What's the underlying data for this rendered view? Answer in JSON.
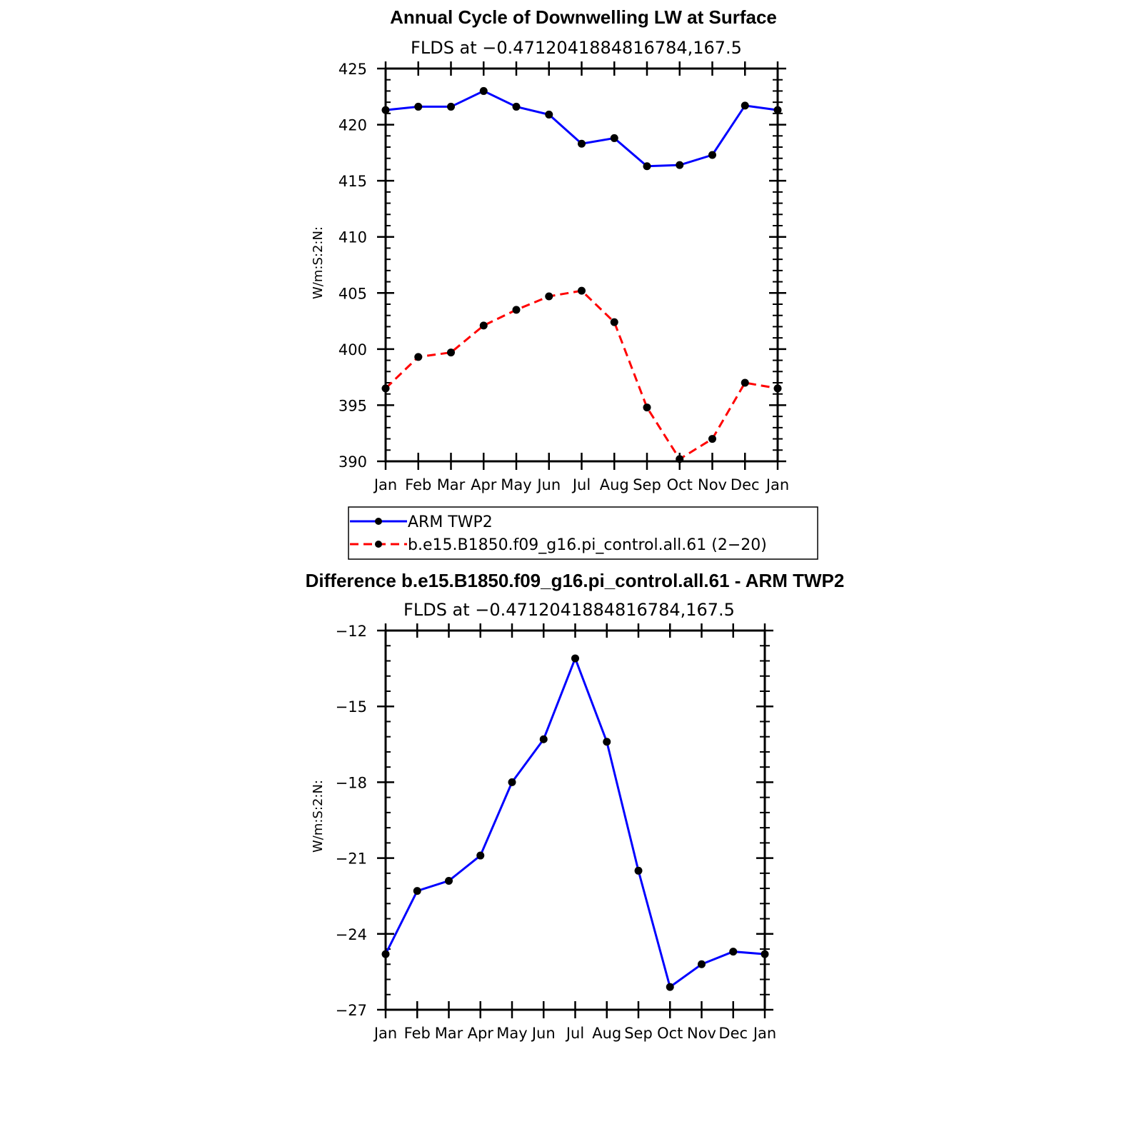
{
  "chart_data": [
    {
      "type": "line",
      "title": "Annual Cycle of Downwelling LW at Surface",
      "subtitle": "FLDS at −0.4712041884816784,167.5",
      "xlabel": "",
      "ylabel": "W/m:S:2:N:",
      "categories": [
        "Jan",
        "Feb",
        "Mar",
        "Apr",
        "May",
        "Jun",
        "Jul",
        "Aug",
        "Sep",
        "Oct",
        "Nov",
        "Dec",
        "Jan"
      ],
      "yticks": [
        "425",
        "420",
        "415",
        "410",
        "405",
        "400",
        "395",
        "390"
      ],
      "ylim": [
        390,
        425
      ],
      "series": [
        {
          "name": "ARM TWP2",
          "color": "#0000ff",
          "dash": "solid",
          "values": [
            421.3,
            421.6,
            421.6,
            423.0,
            421.6,
            420.9,
            418.3,
            418.8,
            416.3,
            416.4,
            417.3,
            421.7,
            421.3
          ]
        },
        {
          "name": "b.e15.B1850.f09_g16.pi_control.all.61 (2−20)",
          "color": "#ff0000",
          "dash": "dashed",
          "values": [
            396.5,
            399.3,
            399.7,
            402.1,
            403.5,
            404.7,
            405.2,
            402.4,
            394.8,
            390.2,
            392.0,
            397.0,
            396.5
          ]
        }
      ]
    },
    {
      "type": "line",
      "title": "Difference b.e15.B1850.f09_g16.pi_control.all.61 - ARM TWP2",
      "subtitle": "FLDS at −0.4712041884816784,167.5",
      "xlabel": "",
      "ylabel": "W/m:S:2:N:",
      "categories": [
        "Jan",
        "Feb",
        "Mar",
        "Apr",
        "May",
        "Jun",
        "Jul",
        "Aug",
        "Sep",
        "Oct",
        "Nov",
        "Dec",
        "Jan"
      ],
      "yticks": [
        "−12",
        "−15",
        "−18",
        "−21",
        "−24",
        "−27"
      ],
      "ylim": [
        -27,
        -12
      ],
      "series": [
        {
          "name": "Difference",
          "color": "#0000ff",
          "dash": "solid",
          "values": [
            -24.8,
            -22.3,
            -21.9,
            -20.9,
            -18.0,
            -16.3,
            -13.1,
            -16.4,
            -21.5,
            -26.1,
            -25.2,
            -24.7,
            -24.8
          ]
        }
      ]
    }
  ]
}
